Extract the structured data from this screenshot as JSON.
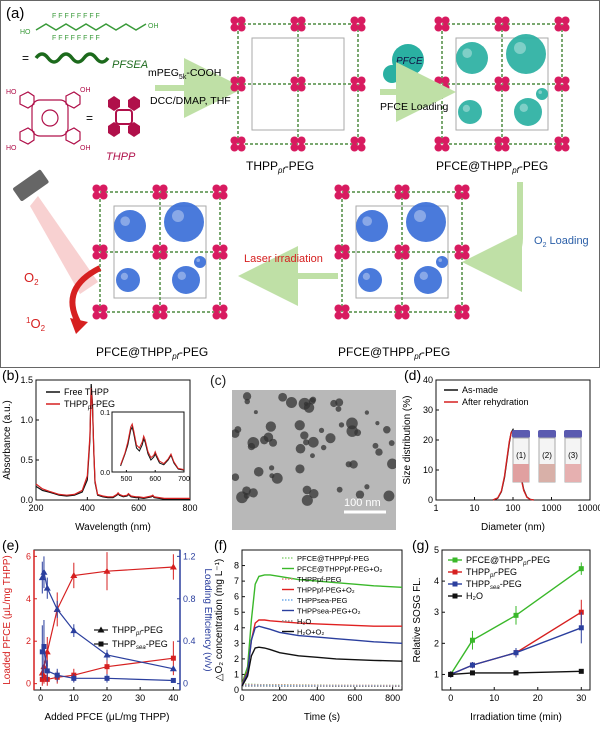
{
  "panel_a": {
    "label": "(a)",
    "pfsea_label": "PFSEA",
    "thpp_label": "THPP",
    "equals": "=",
    "step1_reagent": "mPEG",
    "step1_reagent_sub": "5k",
    "step1_reagent_tail": "-COOH",
    "step1_conditions": "DCC/DMAP, THF",
    "pfce_bubble": "PFCE",
    "step2": "PFCE Loading",
    "step3": "O",
    "step3_sub": "2",
    "step3_tail": " Loading",
    "step4": "Laser irradiation",
    "o2_label": "O",
    "o2_sub": "2",
    "singlet_pre": "1",
    "singlet_label": "O",
    "singlet_sub": "2",
    "mof1": {
      "a": "THPP",
      "b": "pf",
      "c": "-PEG"
    },
    "mof2": {
      "a": "PFCE@THPP",
      "b": "pf",
      "c": "-PEG"
    },
    "mof3": {
      "a": "PFCE@THPP",
      "b": "pf",
      "c": "-PEG"
    },
    "mof4": {
      "a": "PFCE@THPP",
      "b": "pf",
      "c": "-PEG"
    }
  },
  "panel_c": {
    "label": "(c)",
    "scale_bar": "100 nm"
  },
  "panel_d_vials": [
    "(1)",
    "(2)",
    "(3)"
  ],
  "chart_data": [
    {
      "id": "b",
      "label": "(b)",
      "type": "line",
      "xlabel": "Wavelength (nm)",
      "ylabel": "Absorbance (a.u.)",
      "xlim": [
        200,
        800
      ],
      "ylim": [
        0,
        1.5
      ],
      "xticks": [
        200,
        400,
        600,
        800
      ],
      "yticks": [
        0.0,
        0.5,
        1.0,
        1.5
      ],
      "ytick_labels": [
        "0.0",
        "0.5",
        "1.0",
        "1.5"
      ],
      "legend": "top-left",
      "series": [
        {
          "name": "Free THPP",
          "color": "#111111",
          "x": [
            200,
            225,
            250,
            270,
            290,
            320,
            350,
            380,
            400,
            410,
            415,
            420,
            425,
            430,
            440,
            460,
            480,
            500,
            515,
            520,
            525,
            540,
            555,
            560,
            570,
            590,
            600,
            620,
            650,
            655,
            660,
            700,
            750,
            800
          ],
          "y": [
            0.17,
            0.12,
            0.1,
            0.08,
            0.06,
            0.05,
            0.06,
            0.1,
            0.25,
            0.75,
            1.45,
            1.2,
            0.6,
            0.22,
            0.06,
            0.04,
            0.03,
            0.03,
            0.06,
            0.08,
            0.06,
            0.04,
            0.05,
            0.07,
            0.04,
            0.03,
            0.03,
            0.02,
            0.04,
            0.05,
            0.03,
            0.01,
            0.01,
            0.01
          ]
        },
        {
          "name": "THPPpf-PEG",
          "color": "#d62020",
          "x": [
            200,
            225,
            250,
            270,
            290,
            320,
            350,
            380,
            400,
            410,
            415,
            420,
            425,
            430,
            440,
            460,
            480,
            500,
            515,
            520,
            525,
            540,
            555,
            560,
            570,
            590,
            600,
            620,
            650,
            655,
            660,
            700,
            750,
            800
          ],
          "y": [
            0.2,
            0.14,
            0.11,
            0.09,
            0.07,
            0.06,
            0.07,
            0.12,
            0.3,
            0.8,
            1.4,
            1.15,
            0.62,
            0.24,
            0.07,
            0.05,
            0.04,
            0.04,
            0.07,
            0.09,
            0.07,
            0.05,
            0.06,
            0.08,
            0.05,
            0.04,
            0.04,
            0.03,
            0.05,
            0.06,
            0.04,
            0.02,
            0.02,
            0.02
          ]
        }
      ],
      "inset": {
        "xlim": [
          450,
          700
        ],
        "ylim": [
          0,
          0.1
        ],
        "xticks": [
          500,
          600,
          700
        ],
        "yticks": [
          0.0,
          0.1
        ],
        "ytick_labels": [
          "0.0",
          "0.1"
        ],
        "series": [
          {
            "name": "Free THPP",
            "color": "#111111",
            "x": [
              480,
              495,
              505,
              515,
              520,
              525,
              535,
              545,
              555,
              560,
              565,
              575,
              585,
              595,
              600,
              605,
              615,
              630,
              645,
              655,
              665,
              680,
              700
            ],
            "y": [
              0.01,
              0.03,
              0.045,
              0.07,
              0.075,
              0.065,
              0.04,
              0.035,
              0.045,
              0.055,
              0.05,
              0.03,
              0.02,
              0.025,
              0.03,
              0.025,
              0.015,
              0.012,
              0.02,
              0.028,
              0.015,
              0.005,
              0.003
            ]
          },
          {
            "name": "THPPpf-PEG",
            "color": "#d62020",
            "x": [
              480,
              495,
              505,
              515,
              520,
              525,
              535,
              545,
              555,
              560,
              565,
              575,
              585,
              595,
              600,
              605,
              615,
              630,
              645,
              655,
              665,
              680,
              700
            ],
            "y": [
              0.012,
              0.032,
              0.05,
              0.075,
              0.08,
              0.07,
              0.045,
              0.04,
              0.05,
              0.06,
              0.054,
              0.034,
              0.024,
              0.028,
              0.034,
              0.028,
              0.018,
              0.014,
              0.022,
              0.03,
              0.017,
              0.006,
              0.004
            ]
          }
        ]
      }
    },
    {
      "id": "d",
      "label": "(d)",
      "type": "line",
      "xscale": "log",
      "xlabel": "Diameter (nm)",
      "ylabel": "Size distribution (%)",
      "xlim": [
        1,
        10000
      ],
      "ylim": [
        0,
        40
      ],
      "xticks": [
        1,
        10,
        100,
        1000,
        10000
      ],
      "xtick_labels": [
        "1",
        "10",
        "100",
        "1000",
        "10000"
      ],
      "yticks": [
        0,
        10,
        20,
        30,
        40
      ],
      "legend": "top-left",
      "series": [
        {
          "name": "As-made",
          "color": "#111111",
          "x": [
            30,
            40,
            50,
            60,
            70,
            80,
            90,
            100,
            110,
            125,
            140,
            160,
            190,
            230,
            280,
            350
          ],
          "y": [
            0,
            0.6,
            2.8,
            7.5,
            13.5,
            19,
            22.5,
            23.5,
            22,
            18,
            13,
            8,
            3.5,
            1,
            0.2,
            0
          ]
        },
        {
          "name": "After rehydration",
          "color": "#d62020",
          "x": [
            30,
            40,
            50,
            60,
            70,
            80,
            90,
            100,
            110,
            125,
            140,
            160,
            190,
            230,
            280,
            350
          ],
          "y": [
            0,
            0.7,
            3,
            8,
            14,
            19.5,
            22.5,
            23,
            21.5,
            17.5,
            12.5,
            7.5,
            3.2,
            0.9,
            0.2,
            0
          ]
        }
      ]
    },
    {
      "id": "e",
      "label": "(e)",
      "type": "line",
      "xlabel": "Added PFCE (μL/mg THPP)",
      "ylabel_left": "Loaded PFCE (μL/mg THPP)",
      "ylabel_right": "Loading Efficiency (v/v)",
      "xlim": [
        0,
        40
      ],
      "ylim_left": [
        0,
        6
      ],
      "ylim_right": [
        0,
        1.2
      ],
      "xticks": [
        0,
        10,
        20,
        30,
        40
      ],
      "yticks_left": [
        0,
        2,
        4,
        6
      ],
      "yticks_right": [
        0,
        0.4,
        0.8,
        1.2
      ],
      "ytick_labels_right": [
        "0",
        "0.4",
        "0.8",
        "1.2"
      ],
      "left_axis_color": "#d62020",
      "right_axis_color": "#2b3f9e",
      "legend": "center-right",
      "series": [
        {
          "name": "THPPpf-PEG",
          "axis": "left",
          "color": "#d62020",
          "marker": "triangle",
          "x": [
            0.5,
            1,
            2,
            5,
            10,
            20,
            40
          ],
          "y": [
            0.5,
            0.8,
            1.5,
            3.5,
            5.1,
            5.3,
            5.5
          ],
          "err": [
            0.3,
            0.4,
            0.7,
            0.8,
            0.6,
            0.9,
            0.6
          ]
        },
        {
          "name": "THPPsea-PEG",
          "axis": "left",
          "color": "#d62020",
          "marker": "square",
          "x": [
            0.5,
            1,
            2,
            5,
            10,
            20,
            40
          ],
          "y": [
            0.2,
            0.3,
            0.2,
            0.3,
            0.4,
            0.8,
            1.2
          ],
          "err": [
            0.3,
            0.3,
            0.3,
            0.3,
            0.3,
            0.6,
            0.8
          ]
        },
        {
          "name": "THPPpf-PEG",
          "axis": "right",
          "color": "#2b3f9e",
          "marker": "triangle",
          "x": [
            0.5,
            1,
            2,
            5,
            10,
            20,
            40
          ],
          "y": [
            1.0,
            1.05,
            0.9,
            0.7,
            0.5,
            0.27,
            0.14
          ],
          "err": [
            0.15,
            0.15,
            0.1,
            0.08,
            0.06,
            0.05,
            0.02
          ]
        },
        {
          "name": "THPPsea-PEG",
          "axis": "right",
          "color": "#2b3f9e",
          "marker": "square",
          "x": [
            0.5,
            1,
            2,
            5,
            10,
            20,
            40
          ],
          "y": [
            0.3,
            0.35,
            0.12,
            0.08,
            0.05,
            0.05,
            0.03
          ],
          "err": [
            0.25,
            0.25,
            0.1,
            0.06,
            0.04,
            0.04,
            0.02
          ]
        }
      ]
    },
    {
      "id": "f",
      "label": "(f)",
      "type": "line",
      "xlabel": "Time (s)",
      "ylabel": "△O₂ concentration (mg L⁻¹)",
      "xlim": [
        0,
        850
      ],
      "ylim": [
        0,
        9
      ],
      "xticks": [
        0,
        200,
        400,
        600,
        800
      ],
      "yticks": [
        0,
        1,
        2,
        3,
        4,
        5,
        6,
        7,
        8
      ],
      "legend": "top-right",
      "series": [
        {
          "name": "PFCE@THPPpf-PEG",
          "color": "#8bd37a",
          "dotted": true,
          "x": [
            0,
            100,
            200,
            400,
            600,
            850
          ],
          "y": [
            0.4,
            0.35,
            0.35,
            0.32,
            0.3,
            0.3
          ]
        },
        {
          "name": "PFCE@THPPpf-PEG+O₂",
          "color": "#3ab82a",
          "dotted": false,
          "x": [
            0,
            30,
            50,
            70,
            90,
            120,
            150,
            200,
            300,
            400,
            500,
            600,
            700,
            850
          ],
          "y": [
            0.4,
            1.5,
            4.5,
            6.8,
            7.3,
            7.4,
            7.4,
            7.3,
            7.1,
            7.0,
            6.9,
            6.8,
            6.7,
            6.6
          ]
        },
        {
          "name": "THPPpf-PEG",
          "color": "#e88080",
          "dotted": true,
          "x": [
            0,
            100,
            200,
            400,
            600,
            850
          ],
          "y": [
            0.35,
            0.33,
            0.32,
            0.3,
            0.3,
            0.28
          ]
        },
        {
          "name": "THPPpf-PEG+O₂",
          "color": "#e02020",
          "dotted": false,
          "x": [
            0,
            30,
            50,
            70,
            90,
            120,
            150,
            200,
            300,
            400,
            500,
            600,
            700,
            850
          ],
          "y": [
            0.35,
            1.2,
            3.2,
            4.3,
            4.5,
            4.5,
            4.45,
            4.4,
            4.3,
            4.25,
            4.2,
            4.15,
            4.1,
            4.1
          ]
        },
        {
          "name": "THPPsea-PEG",
          "color": "#6fa9e8",
          "dotted": true,
          "x": [
            0,
            100,
            200,
            400,
            600,
            850
          ],
          "y": [
            0.3,
            0.3,
            0.28,
            0.27,
            0.27,
            0.26
          ]
        },
        {
          "name": "THPPsea-PEG+O₂",
          "color": "#2b3f9e",
          "dotted": false,
          "x": [
            0,
            30,
            50,
            70,
            90,
            120,
            150,
            200,
            300,
            400,
            500,
            600,
            700,
            850
          ],
          "y": [
            0.3,
            1.1,
            3.2,
            4.0,
            4.1,
            4.0,
            3.9,
            3.7,
            3.5,
            3.4,
            3.3,
            3.2,
            3.1,
            3.0
          ]
        },
        {
          "name": "H₂O",
          "color": "#888888",
          "dotted": true,
          "x": [
            0,
            100,
            200,
            400,
            600,
            850
          ],
          "y": [
            0.25,
            0.25,
            0.24,
            0.24,
            0.23,
            0.23
          ]
        },
        {
          "name": "H₂O+O₂",
          "color": "#111111",
          "dotted": false,
          "x": [
            0,
            30,
            50,
            70,
            90,
            120,
            150,
            200,
            300,
            400,
            500,
            600,
            700,
            850
          ],
          "y": [
            0.25,
            0.9,
            2.2,
            2.7,
            2.75,
            2.7,
            2.6,
            2.4,
            2.2,
            2.1,
            2.0,
            1.95,
            1.9,
            1.85
          ]
        }
      ]
    },
    {
      "id": "g",
      "label": "(g)",
      "type": "line",
      "xlabel": "Irradiation time (min)",
      "ylabel": "Relative SOSG FL.",
      "xlim": [
        -2,
        32
      ],
      "ylim": [
        0.5,
        5
      ],
      "xticks": [
        0,
        10,
        20,
        30
      ],
      "yticks": [
        1,
        2,
        3,
        4,
        5
      ],
      "legend": "top-left",
      "series": [
        {
          "name": "PFCE@THPPpf-PEG",
          "color": "#3ab82a",
          "marker": "square",
          "x": [
            0,
            5,
            15,
            30
          ],
          "y": [
            1.0,
            2.1,
            2.9,
            4.4
          ],
          "err": [
            0.1,
            0.3,
            0.3,
            0.2
          ]
        },
        {
          "name": "THPPpf-PEG",
          "color": "#d62020",
          "marker": "square",
          "x": [
            0,
            5,
            15,
            30
          ],
          "y": [
            1.0,
            1.3,
            1.7,
            3.0
          ],
          "err": [
            0.1,
            0.1,
            0.15,
            0.4
          ]
        },
        {
          "name": "THPPsea-PEG",
          "color": "#2b3f9e",
          "marker": "square",
          "x": [
            0,
            5,
            15,
            30
          ],
          "y": [
            1.0,
            1.3,
            1.7,
            2.5
          ],
          "err": [
            0.1,
            0.1,
            0.15,
            0.5
          ]
        },
        {
          "name": "H₂O",
          "color": "#111111",
          "marker": "square",
          "x": [
            0,
            5,
            15,
            30
          ],
          "y": [
            1.0,
            1.05,
            1.05,
            1.1
          ],
          "err": [
            0.05,
            0.05,
            0.05,
            0.05
          ]
        }
      ]
    }
  ]
}
